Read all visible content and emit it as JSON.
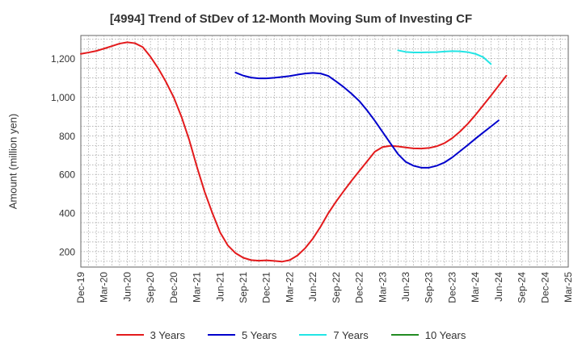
{
  "chart_data": {
    "type": "line",
    "title": "[4994]  Trend of StDev of 12-Month Moving Sum of Investing CF",
    "xlabel": "",
    "ylabel": "Amount (million yen)",
    "x_ticks": [
      "Dec-19",
      "Mar-20",
      "Jun-20",
      "Sep-20",
      "Dec-20",
      "Mar-21",
      "Jun-21",
      "Sep-21",
      "Dec-21",
      "Mar-22",
      "Jun-22",
      "Sep-22",
      "Dec-22",
      "Mar-23",
      "Jun-23",
      "Sep-23",
      "Dec-23",
      "Mar-24",
      "Jun-24",
      "Sep-24",
      "Dec-24",
      "Mar-25"
    ],
    "y_ticks": [
      200,
      400,
      600,
      800,
      1000,
      1200
    ],
    "y_tick_labels": [
      "200",
      "400",
      "600",
      "800",
      "1,000",
      "1,200"
    ],
    "ylim": [
      120,
      1320
    ],
    "grid": true,
    "legend_position": "bottom",
    "series": [
      {
        "name": "3 Years",
        "color": "#e31a1c",
        "points": [
          [
            "Dec-19",
            1225
          ],
          [
            "Jan-20",
            1232
          ],
          [
            "Feb-20",
            1240
          ],
          [
            "Mar-20",
            1252
          ],
          [
            "Apr-20",
            1265
          ],
          [
            "May-20",
            1278
          ],
          [
            "Jun-20",
            1285
          ],
          [
            "Jul-20",
            1280
          ],
          [
            "Aug-20",
            1260
          ],
          [
            "Sep-20",
            1210
          ],
          [
            "Oct-20",
            1150
          ],
          [
            "Nov-20",
            1080
          ],
          [
            "Dec-20",
            1000
          ],
          [
            "Jan-21",
            900
          ],
          [
            "Feb-21",
            780
          ],
          [
            "Mar-21",
            640
          ],
          [
            "Apr-21",
            510
          ],
          [
            "May-21",
            400
          ],
          [
            "Jun-21",
            300
          ],
          [
            "Jul-21",
            232
          ],
          [
            "Aug-21",
            192
          ],
          [
            "Sep-21",
            168
          ],
          [
            "Oct-21",
            156
          ],
          [
            "Nov-21",
            153
          ],
          [
            "Dec-21",
            155
          ],
          [
            "Jan-22",
            152
          ],
          [
            "Feb-22",
            148
          ],
          [
            "Mar-22",
            156
          ],
          [
            "Apr-22",
            180
          ],
          [
            "May-22",
            218
          ],
          [
            "Jun-22",
            268
          ],
          [
            "Jul-22",
            330
          ],
          [
            "Aug-22",
            400
          ],
          [
            "Sep-22",
            460
          ],
          [
            "Oct-22",
            515
          ],
          [
            "Nov-22",
            568
          ],
          [
            "Dec-22",
            618
          ],
          [
            "Jan-23",
            668
          ],
          [
            "Feb-23",
            718
          ],
          [
            "Mar-23",
            742
          ],
          [
            "Apr-23",
            748
          ],
          [
            "May-23",
            745
          ],
          [
            "Jun-23",
            740
          ],
          [
            "Jul-23",
            735
          ],
          [
            "Aug-23",
            734
          ],
          [
            "Sep-23",
            737
          ],
          [
            "Oct-23",
            746
          ],
          [
            "Nov-23",
            762
          ],
          [
            "Dec-23",
            788
          ],
          [
            "Jan-24",
            822
          ],
          [
            "Feb-24",
            862
          ],
          [
            "Mar-24",
            908
          ],
          [
            "Apr-24",
            958
          ],
          [
            "May-24",
            1008
          ],
          [
            "Jun-24",
            1060
          ],
          [
            "Jul-24",
            1112
          ]
        ]
      },
      {
        "name": "5 Years",
        "color": "#0000cc",
        "points": [
          [
            "Aug-21",
            1128
          ],
          [
            "Sep-21",
            1112
          ],
          [
            "Oct-21",
            1102
          ],
          [
            "Nov-21",
            1098
          ],
          [
            "Dec-21",
            1098
          ],
          [
            "Jan-22",
            1101
          ],
          [
            "Feb-22",
            1105
          ],
          [
            "Mar-22",
            1110
          ],
          [
            "Apr-22",
            1117
          ],
          [
            "May-22",
            1123
          ],
          [
            "Jun-22",
            1126
          ],
          [
            "Jul-22",
            1123
          ],
          [
            "Aug-22",
            1110
          ],
          [
            "Sep-22",
            1082
          ],
          [
            "Oct-22",
            1052
          ],
          [
            "Nov-22",
            1018
          ],
          [
            "Dec-22",
            980
          ],
          [
            "Jan-23",
            932
          ],
          [
            "Feb-23",
            878
          ],
          [
            "Mar-23",
            820
          ],
          [
            "Apr-23",
            762
          ],
          [
            "May-23",
            705
          ],
          [
            "Jun-23",
            665
          ],
          [
            "Jul-23",
            645
          ],
          [
            "Aug-23",
            635
          ],
          [
            "Sep-23",
            635
          ],
          [
            "Oct-23",
            645
          ],
          [
            "Nov-23",
            662
          ],
          [
            "Dec-23",
            688
          ],
          [
            "Jan-24",
            720
          ],
          [
            "Feb-24",
            752
          ],
          [
            "Mar-24",
            785
          ],
          [
            "Apr-24",
            817
          ],
          [
            "May-24",
            848
          ],
          [
            "Jun-24",
            880
          ]
        ]
      },
      {
        "name": "7 Years",
        "color": "#22e5e5",
        "points": [
          [
            "May-23",
            1243
          ],
          [
            "Jun-23",
            1235
          ],
          [
            "Jul-23",
            1232
          ],
          [
            "Aug-23",
            1232
          ],
          [
            "Sep-23",
            1233
          ],
          [
            "Oct-23",
            1234
          ],
          [
            "Nov-23",
            1237
          ],
          [
            "Dec-23",
            1239
          ],
          [
            "Jan-24",
            1238
          ],
          [
            "Feb-24",
            1234
          ],
          [
            "Mar-24",
            1225
          ],
          [
            "Apr-24",
            1208
          ],
          [
            "May-24",
            1172
          ]
        ]
      },
      {
        "name": "10 Years",
        "color": "#228b22",
        "points": []
      }
    ]
  }
}
